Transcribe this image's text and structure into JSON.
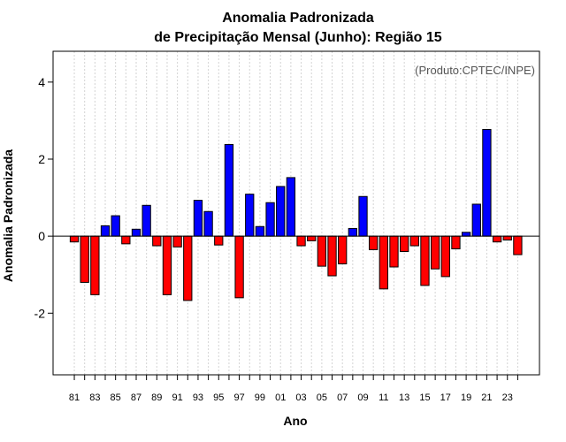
{
  "chart_data": {
    "type": "bar",
    "title": [
      "Anomalia Padronizada",
      "de Precipitação Mensal (Junho): Região 15"
    ],
    "xlabel": "Ano",
    "ylabel": "Anomalia Padronizada",
    "annotation": "(Produto:CPTEC/INPE)",
    "ylim": [
      -3.6,
      4.8
    ],
    "yticks": [
      -2,
      0,
      2,
      4
    ],
    "xtick_labels": [
      "81",
      "83",
      "85",
      "87",
      "89",
      "91",
      "93",
      "95",
      "97",
      "99",
      "01",
      "03",
      "05",
      "07",
      "09",
      "11",
      "13",
      "15",
      "17",
      "19",
      "21",
      "23"
    ],
    "categories": [
      "1981",
      "1982",
      "1983",
      "1984",
      "1985",
      "1986",
      "1987",
      "1988",
      "1989",
      "1990",
      "1991",
      "1992",
      "1993",
      "1994",
      "1995",
      "1996",
      "1997",
      "1998",
      "1999",
      "2000",
      "2001",
      "2002",
      "2003",
      "2004",
      "2005",
      "2006",
      "2007",
      "2008",
      "2009",
      "2010",
      "2011",
      "2012",
      "2013",
      "2014",
      "2015",
      "2016",
      "2017",
      "2018",
      "2019",
      "2020",
      "2021",
      "2022",
      "2023",
      "2024"
    ],
    "values": [
      -0.15,
      -1.2,
      -1.52,
      0.27,
      0.53,
      -0.2,
      0.18,
      0.8,
      -0.25,
      -1.52,
      -0.28,
      -1.67,
      0.93,
      0.64,
      -0.23,
      2.38,
      -1.6,
      1.09,
      0.25,
      0.87,
      1.29,
      1.52,
      -0.25,
      -0.12,
      -0.78,
      -1.03,
      -0.72,
      0.2,
      1.03,
      -0.35,
      -1.37,
      -0.8,
      -0.4,
      -0.25,
      -1.28,
      -0.85,
      -1.05,
      -0.33,
      0.1,
      0.83,
      2.77,
      -0.15,
      -0.1,
      -0.48
    ],
    "grid": true,
    "colors": {
      "positive": "#0000ff",
      "negative": "#ff0000",
      "bar_border": "#000000",
      "grid": "#d3d3d3"
    }
  }
}
